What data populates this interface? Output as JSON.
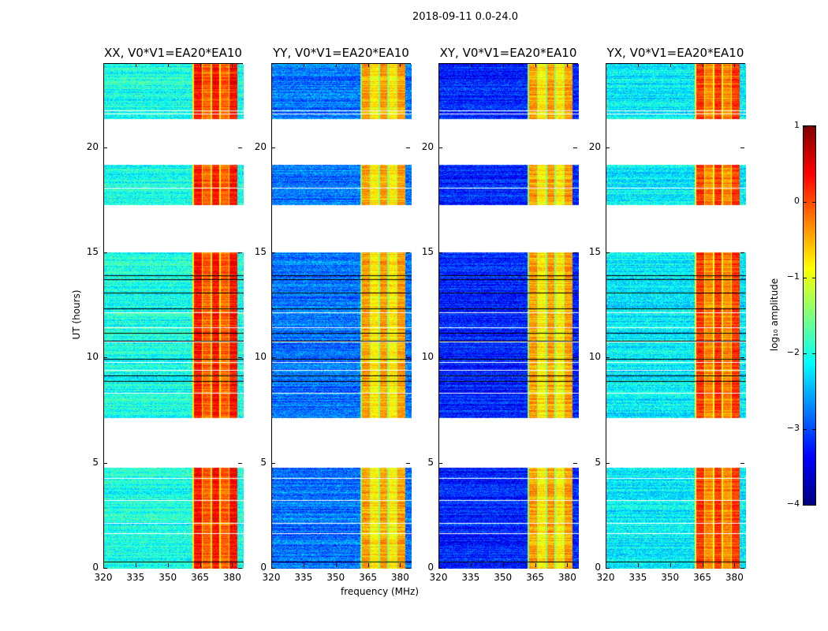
{
  "chart_data": {
    "type": "heatmap",
    "title": "2018-09-11 0.0-24.0",
    "xlabel": "frequency (MHz)",
    "ylabel": "UT (hours)",
    "xlim": [
      320,
      385
    ],
    "ylim": [
      0,
      24
    ],
    "xticks": [
      320,
      335,
      350,
      365,
      380
    ],
    "yticks": [
      0,
      5,
      10,
      15,
      20
    ],
    "data_segments_hours": [
      [
        0,
        4.8
      ],
      [
        7.2,
        15.1
      ],
      [
        17.3,
        19.2
      ],
      [
        21.4,
        24
      ]
    ],
    "bright_band_mhz": [
      361,
      382
    ],
    "panels": [
      {
        "title": "XX, V0*V1=EA20*EA10",
        "background_log_amp": -2.0,
        "band_log_amp": 0.1
      },
      {
        "title": "YY, V0*V1=EA20*EA10",
        "background_log_amp": -2.8,
        "band_log_amp": -0.6
      },
      {
        "title": "XY, V0*V1=EA20*EA10",
        "background_log_amp": -3.2,
        "band_log_amp": -0.6
      },
      {
        "title": "YX, V0*V1=EA20*EA10",
        "background_log_amp": -2.2,
        "band_log_amp": -0.1
      }
    ],
    "colorbar": {
      "label": "log₁₀ amplitude",
      "range": [
        -4,
        1
      ],
      "ticks": [
        "1",
        "0",
        "−1",
        "−2",
        "−3",
        "−4"
      ],
      "colormap": "jet"
    }
  }
}
